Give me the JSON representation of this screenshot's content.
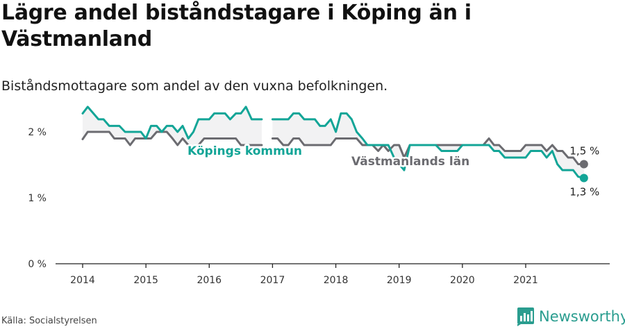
{
  "title": "Lägre andel biståndstagare i Köping än i Västmanland",
  "subtitle": "Biståndsmottagare som andel av den vuxna befolkningen.",
  "source": "Källa: Socialstyrelsen",
  "brand": {
    "name": "Newsworthy",
    "icon": "newsworthy-logo-icon",
    "color": "#2a9d8f"
  },
  "chart_data": {
    "type": "line",
    "ylim": [
      0,
      2.4
    ],
    "xlim": [
      2013.6,
      2022.3
    ],
    "grid": false,
    "y_ticks": [
      {
        "value": 0,
        "label": "0 %"
      },
      {
        "value": 1,
        "label": "1 %"
      },
      {
        "value": 2,
        "label": "2 %"
      }
    ],
    "x_ticks": [
      {
        "value": 2014,
        "label": "2014"
      },
      {
        "value": 2015,
        "label": "2015"
      },
      {
        "value": 2016,
        "label": "2016"
      },
      {
        "value": 2017,
        "label": "2017"
      },
      {
        "value": 2018,
        "label": "2018"
      },
      {
        "value": 2019,
        "label": "2019"
      },
      {
        "value": 2020,
        "label": "2020"
      },
      {
        "value": 2021,
        "label": "2021"
      }
    ],
    "series": [
      {
        "name": "Västmanlands län",
        "color": "#6b6b70",
        "end_label": "1,5 %",
        "points": [
          [
            2014.0,
            1.89
          ],
          [
            2014.08,
            2.0
          ],
          [
            2014.17,
            2.0
          ],
          [
            2014.25,
            2.0
          ],
          [
            2014.33,
            2.0
          ],
          [
            2014.42,
            2.0
          ],
          [
            2014.5,
            1.9
          ],
          [
            2014.58,
            1.9
          ],
          [
            2014.67,
            1.9
          ],
          [
            2014.75,
            1.8
          ],
          [
            2014.83,
            1.9
          ],
          [
            2014.92,
            1.9
          ],
          [
            2015.0,
            1.9
          ],
          [
            2015.08,
            1.9
          ],
          [
            2015.17,
            2.0
          ],
          [
            2015.25,
            2.0
          ],
          [
            2015.33,
            2.0
          ],
          [
            2015.42,
            1.9
          ],
          [
            2015.5,
            1.8
          ],
          [
            2015.58,
            1.9
          ],
          [
            2015.67,
            1.8
          ],
          [
            2015.75,
            1.71
          ],
          [
            2015.83,
            1.8
          ],
          [
            2015.92,
            1.9
          ],
          [
            2016.0,
            1.9
          ],
          [
            2016.08,
            1.9
          ],
          [
            2016.17,
            1.9
          ],
          [
            2016.25,
            1.9
          ],
          [
            2016.33,
            1.9
          ],
          [
            2016.42,
            1.9
          ],
          [
            2016.5,
            1.8
          ],
          [
            2016.58,
            1.8
          ],
          [
            2016.67,
            1.8
          ],
          [
            2016.75,
            1.8
          ],
          [
            2016.83,
            1.8
          ],
          null,
          [
            2017.0,
            1.9
          ],
          [
            2017.08,
            1.9
          ],
          [
            2017.17,
            1.8
          ],
          [
            2017.25,
            1.8
          ],
          [
            2017.33,
            1.9
          ],
          [
            2017.42,
            1.9
          ],
          [
            2017.5,
            1.8
          ],
          [
            2017.58,
            1.8
          ],
          [
            2017.67,
            1.8
          ],
          [
            2017.75,
            1.8
          ],
          [
            2017.83,
            1.8
          ],
          [
            2017.92,
            1.8
          ],
          [
            2018.0,
            1.9
          ],
          [
            2018.08,
            1.9
          ],
          [
            2018.17,
            1.9
          ],
          [
            2018.25,
            1.9
          ],
          [
            2018.33,
            1.9
          ],
          [
            2018.42,
            1.8
          ],
          [
            2018.5,
            1.8
          ],
          [
            2018.58,
            1.8
          ],
          [
            2018.67,
            1.71
          ],
          [
            2018.75,
            1.8
          ],
          [
            2018.83,
            1.71
          ],
          [
            2018.92,
            1.8
          ],
          [
            2019.0,
            1.8
          ],
          [
            2019.08,
            1.61
          ],
          [
            2019.17,
            1.8
          ],
          [
            2019.25,
            1.8
          ],
          [
            2019.33,
            1.8
          ],
          [
            2019.42,
            1.8
          ],
          [
            2019.5,
            1.8
          ],
          [
            2019.58,
            1.8
          ],
          [
            2019.67,
            1.8
          ],
          [
            2019.75,
            1.8
          ],
          [
            2019.83,
            1.8
          ],
          [
            2019.92,
            1.8
          ],
          [
            2020.0,
            1.8
          ],
          [
            2020.08,
            1.8
          ],
          [
            2020.17,
            1.8
          ],
          [
            2020.25,
            1.8
          ],
          [
            2020.33,
            1.8
          ],
          [
            2020.42,
            1.9
          ],
          [
            2020.5,
            1.8
          ],
          [
            2020.58,
            1.8
          ],
          [
            2020.67,
            1.71
          ],
          [
            2020.75,
            1.71
          ],
          [
            2020.83,
            1.71
          ],
          [
            2020.92,
            1.71
          ],
          [
            2021.0,
            1.8
          ],
          [
            2021.08,
            1.8
          ],
          [
            2021.17,
            1.8
          ],
          [
            2021.25,
            1.8
          ],
          [
            2021.33,
            1.71
          ],
          [
            2021.42,
            1.8
          ],
          [
            2021.5,
            1.71
          ],
          [
            2021.58,
            1.71
          ],
          [
            2021.67,
            1.61
          ],
          [
            2021.75,
            1.61
          ],
          [
            2021.83,
            1.51
          ],
          [
            2021.92,
            1.51
          ]
        ]
      },
      {
        "name": "Köpings kommun",
        "color": "#13a597",
        "end_label": "1,3 %",
        "points": [
          [
            2014.0,
            2.28
          ],
          [
            2014.08,
            2.38
          ],
          [
            2014.17,
            2.28
          ],
          [
            2014.25,
            2.19
          ],
          [
            2014.33,
            2.19
          ],
          [
            2014.42,
            2.09
          ],
          [
            2014.5,
            2.09
          ],
          [
            2014.58,
            2.09
          ],
          [
            2014.67,
            2.0
          ],
          [
            2014.75,
            2.0
          ],
          [
            2014.83,
            2.0
          ],
          [
            2014.92,
            2.0
          ],
          [
            2015.0,
            1.9
          ],
          [
            2015.08,
            2.09
          ],
          [
            2015.17,
            2.09
          ],
          [
            2015.25,
            2.0
          ],
          [
            2015.33,
            2.09
          ],
          [
            2015.42,
            2.09
          ],
          [
            2015.5,
            2.0
          ],
          [
            2015.58,
            2.09
          ],
          [
            2015.67,
            1.9
          ],
          [
            2015.75,
            2.0
          ],
          [
            2015.83,
            2.19
          ],
          [
            2015.92,
            2.19
          ],
          [
            2016.0,
            2.19
          ],
          [
            2016.08,
            2.28
          ],
          [
            2016.17,
            2.28
          ],
          [
            2016.25,
            2.28
          ],
          [
            2016.33,
            2.19
          ],
          [
            2016.42,
            2.28
          ],
          [
            2016.5,
            2.28
          ],
          [
            2016.58,
            2.38
          ],
          [
            2016.67,
            2.19
          ],
          [
            2016.75,
            2.19
          ],
          [
            2016.83,
            2.19
          ],
          null,
          [
            2017.0,
            2.19
          ],
          [
            2017.08,
            2.19
          ],
          [
            2017.17,
            2.19
          ],
          [
            2017.25,
            2.19
          ],
          [
            2017.33,
            2.28
          ],
          [
            2017.42,
            2.28
          ],
          [
            2017.5,
            2.19
          ],
          [
            2017.58,
            2.19
          ],
          [
            2017.67,
            2.19
          ],
          [
            2017.75,
            2.09
          ],
          [
            2017.83,
            2.09
          ],
          [
            2017.92,
            2.19
          ],
          [
            2018.0,
            2.0
          ],
          [
            2018.08,
            2.28
          ],
          [
            2018.17,
            2.28
          ],
          [
            2018.25,
            2.19
          ],
          [
            2018.33,
            2.0
          ],
          [
            2018.42,
            1.9
          ],
          [
            2018.5,
            1.8
          ],
          [
            2018.58,
            1.8
          ],
          [
            2018.67,
            1.8
          ],
          [
            2018.75,
            1.8
          ],
          [
            2018.83,
            1.8
          ],
          [
            2018.92,
            1.61
          ],
          [
            2019.0,
            1.51
          ],
          [
            2019.08,
            1.42
          ],
          [
            2019.17,
            1.8
          ],
          [
            2019.25,
            1.8
          ],
          [
            2019.33,
            1.8
          ],
          [
            2019.42,
            1.8
          ],
          [
            2019.5,
            1.8
          ],
          [
            2019.58,
            1.8
          ],
          [
            2019.67,
            1.71
          ],
          [
            2019.75,
            1.71
          ],
          [
            2019.83,
            1.71
          ],
          [
            2019.92,
            1.71
          ],
          [
            2020.0,
            1.8
          ],
          [
            2020.08,
            1.8
          ],
          [
            2020.17,
            1.8
          ],
          [
            2020.25,
            1.8
          ],
          [
            2020.33,
            1.8
          ],
          [
            2020.42,
            1.8
          ],
          [
            2020.5,
            1.71
          ],
          [
            2020.58,
            1.71
          ],
          [
            2020.67,
            1.61
          ],
          [
            2020.75,
            1.61
          ],
          [
            2020.83,
            1.61
          ],
          [
            2020.92,
            1.61
          ],
          [
            2021.0,
            1.61
          ],
          [
            2021.08,
            1.71
          ],
          [
            2021.17,
            1.71
          ],
          [
            2021.25,
            1.71
          ],
          [
            2021.33,
            1.61
          ],
          [
            2021.42,
            1.71
          ],
          [
            2021.5,
            1.51
          ],
          [
            2021.58,
            1.42
          ],
          [
            2021.67,
            1.42
          ],
          [
            2021.75,
            1.42
          ],
          [
            2021.83,
            1.32
          ],
          [
            2021.92,
            1.3
          ]
        ]
      }
    ]
  }
}
